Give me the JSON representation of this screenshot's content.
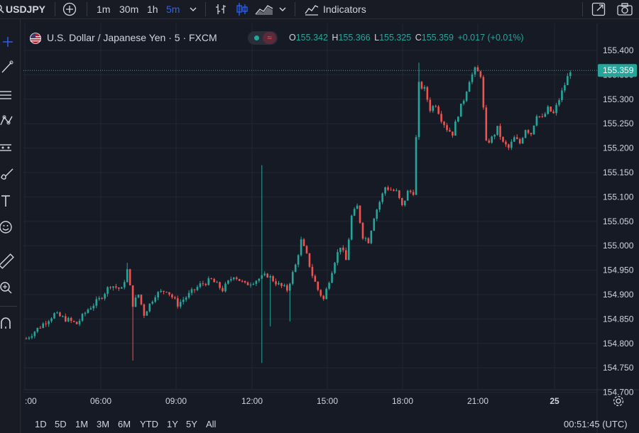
{
  "toolbar": {
    "symbol": "USDJPY",
    "intervals": [
      "1m",
      "30m",
      "1h",
      "5m"
    ],
    "active_interval": "5m",
    "indicators_label": "Indicators",
    "icons": [
      "search-icon",
      "add-symbol-icon",
      "chevron-down-icon",
      "bar-style-icon",
      "candle-style-icon",
      "area-style-icon",
      "indicators-icon",
      "fullscreen-icon",
      "camera-icon"
    ]
  },
  "legend": {
    "title": "U.S. Dollar / Japanese Yen · 5 · FXCM",
    "o_label": "O",
    "o": "155.342",
    "h_label": "H",
    "h": "155.366",
    "l_label": "L",
    "l": "155.325",
    "c_label": "C",
    "c": "155.359",
    "change": "+0.017 (+0.01%)"
  },
  "left_tools": [
    "crosshair-icon",
    "trendline-icon",
    "fib-icon",
    "pattern-icon",
    "forecast-icon",
    "brush-icon",
    "text-icon",
    "emoji-icon",
    "ruler-icon",
    "zoom-icon",
    "magnet-icon"
  ],
  "colors": {
    "up": "#26a69a",
    "down": "#ef5350",
    "accent": "#2962ff",
    "bg": "#161a25"
  },
  "bottom": {
    "ranges": [
      "1D",
      "5D",
      "1M",
      "3M",
      "6M",
      "YTD",
      "1Y",
      "5Y",
      "All"
    ],
    "time": "00:51:45 (UTC)"
  },
  "chart_data": {
    "type": "candlestick",
    "interval": "5",
    "y_ticks": [
      "155.400",
      "155.350",
      "155.300",
      "155.250",
      "155.200",
      "155.150",
      "155.100",
      "155.050",
      "155.000",
      "154.950",
      "154.900",
      "154.850",
      "154.800",
      "154.750",
      "154.700"
    ],
    "x_ticks": [
      ":00",
      "06:00",
      "09:00",
      "12:00",
      "15:00",
      "18:00",
      "21:00",
      "25"
    ],
    "last_price": "155.359",
    "price_range": [
      154.7,
      155.41
    ],
    "anchors": [
      [
        0,
        154.81
      ],
      [
        6,
        154.84
      ],
      [
        10,
        154.86
      ],
      [
        14,
        154.85
      ],
      [
        18,
        154.84
      ],
      [
        22,
        154.87
      ],
      [
        26,
        154.89
      ],
      [
        30,
        154.92
      ],
      [
        34,
        154.91
      ],
      [
        36,
        154.95
      ],
      [
        38,
        154.88
      ],
      [
        40,
        154.9
      ],
      [
        42,
        154.86
      ],
      [
        46,
        154.9
      ],
      [
        50,
        154.91
      ],
      [
        54,
        154.88
      ],
      [
        58,
        154.9
      ],
      [
        62,
        154.92
      ],
      [
        66,
        154.93
      ],
      [
        70,
        154.91
      ],
      [
        74,
        154.94
      ],
      [
        78,
        154.92
      ],
      [
        82,
        154.93
      ],
      [
        86,
        154.94
      ],
      [
        90,
        154.92
      ],
      [
        93,
        154.91
      ],
      [
        96,
        154.96
      ],
      [
        98,
        155.01
      ],
      [
        100,
        154.98
      ],
      [
        102,
        154.94
      ],
      [
        104,
        154.91
      ],
      [
        106,
        154.89
      ],
      [
        108,
        154.93
      ],
      [
        110,
        154.97
      ],
      [
        112,
        155.0
      ],
      [
        114,
        154.97
      ],
      [
        116,
        155.06
      ],
      [
        118,
        155.08
      ],
      [
        120,
        155.02
      ],
      [
        122,
        155.01
      ],
      [
        124,
        155.06
      ],
      [
        126,
        155.09
      ],
      [
        128,
        155.12
      ],
      [
        132,
        155.11
      ],
      [
        134,
        155.08
      ],
      [
        136,
        155.11
      ],
      [
        138,
        155.11
      ],
      [
        140,
        155.33
      ],
      [
        142,
        155.32
      ],
      [
        144,
        155.28
      ],
      [
        146,
        155.29
      ],
      [
        148,
        155.26
      ],
      [
        150,
        155.24
      ],
      [
        152,
        155.23
      ],
      [
        154,
        155.27
      ],
      [
        156,
        155.3
      ],
      [
        158,
        155.34
      ],
      [
        160,
        155.36
      ],
      [
        162,
        155.35
      ],
      [
        164,
        155.21
      ],
      [
        166,
        155.22
      ],
      [
        168,
        155.24
      ],
      [
        170,
        155.21
      ],
      [
        172,
        155.2
      ],
      [
        174,
        155.22
      ],
      [
        176,
        155.21
      ],
      [
        178,
        155.24
      ],
      [
        180,
        155.23
      ],
      [
        182,
        155.27
      ],
      [
        184,
        155.26
      ],
      [
        186,
        155.28
      ],
      [
        188,
        155.27
      ],
      [
        190,
        155.3
      ],
      [
        192,
        155.33
      ],
      [
        194,
        155.36
      ]
    ]
  }
}
